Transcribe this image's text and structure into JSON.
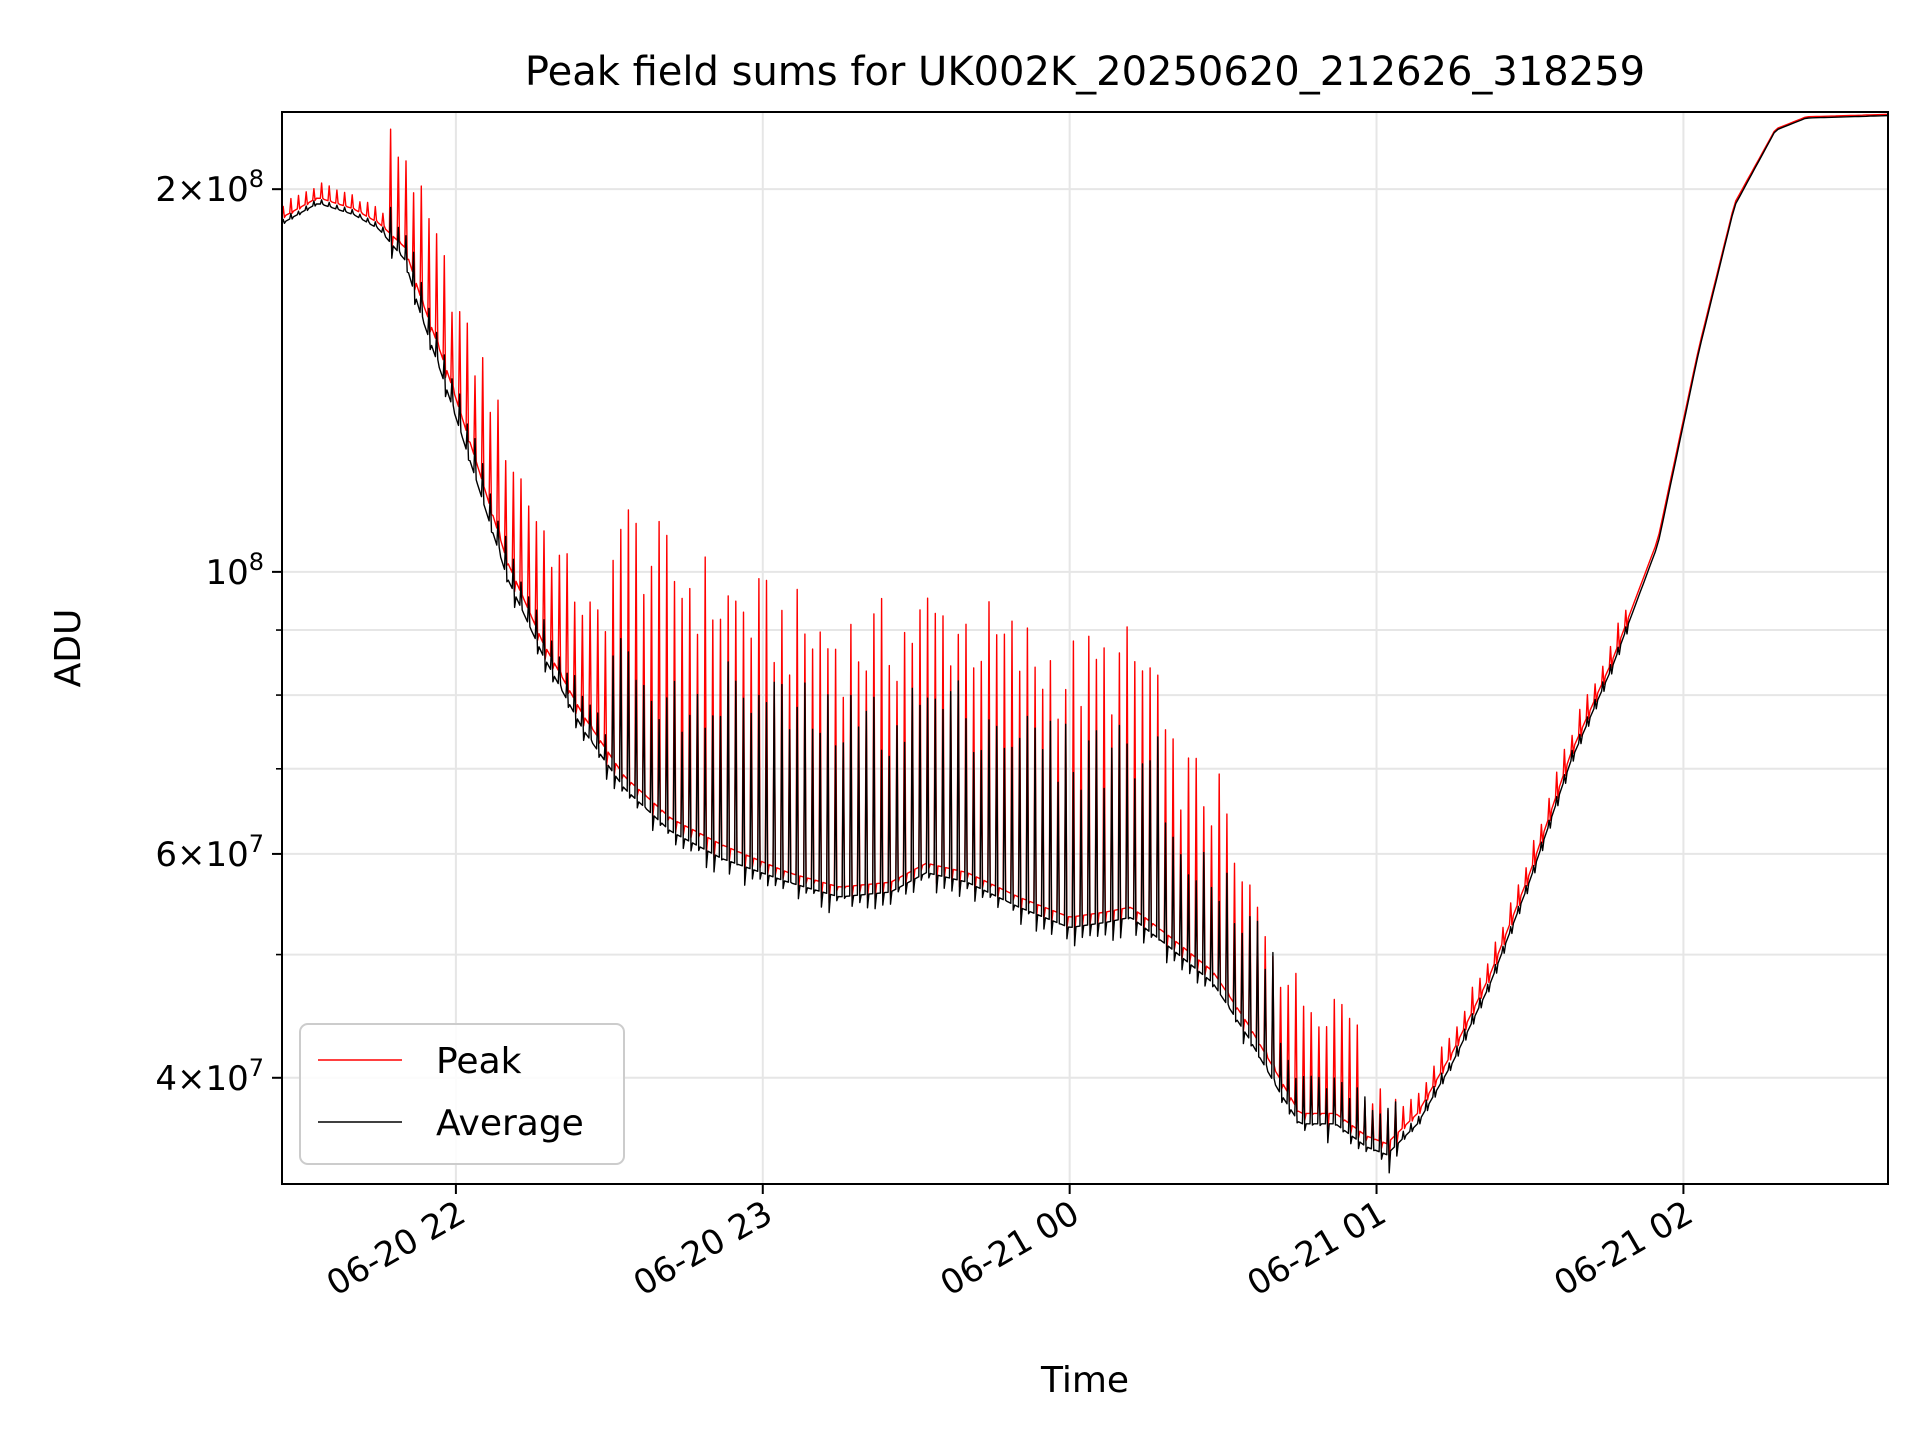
{
  "chart_data": {
    "type": "line",
    "title": "Peak field sums for UK002K_20250620_212626_318259",
    "xlabel": "Time",
    "ylabel": "ADU",
    "yscale": "log",
    "ylim": [
      33000000,
      230000000
    ],
    "xlim": [
      "2025-06-20T21:26:00",
      "2025-06-21T02:40:00"
    ],
    "grid": true,
    "legend_position": "lower-left",
    "x_ticks": [
      {
        "value": "2025-06-20T22:00:00",
        "label": "06-20 22"
      },
      {
        "value": "2025-06-20T23:00:00",
        "label": "06-20 23"
      },
      {
        "value": "2025-06-21T00:00:00",
        "label": "06-21 00"
      },
      {
        "value": "2025-06-21T01:00:00",
        "label": "06-21 01"
      },
      {
        "value": "2025-06-21T02:00:00",
        "label": "06-21 02"
      }
    ],
    "y_major_ticks": [
      {
        "value": 40000000,
        "mant": "4",
        "exp": "7"
      },
      {
        "value": 60000000,
        "mant": "6",
        "exp": "7"
      },
      {
        "value": 100000000,
        "mant": "",
        "exp": "8"
      },
      {
        "value": 200000000,
        "mant": "2",
        "exp": "8"
      }
    ],
    "y_minor_ticks": [
      50000000,
      70000000,
      80000000,
      90000000
    ],
    "series": [
      {
        "name": "Peak",
        "color": "#ff0000",
        "baseline": [
          [
            "2025-06-20T21:26:00",
            190000000
          ],
          [
            "2025-06-20T21:33:00",
            197000000
          ],
          [
            "2025-06-20T21:40:00",
            193000000
          ],
          [
            "2025-06-20T21:45:00",
            188000000
          ],
          [
            "2025-06-20T21:50:00",
            180000000
          ],
          [
            "2025-06-20T21:53:00",
            165000000
          ],
          [
            "2025-06-20T21:58:00",
            145000000
          ],
          [
            "2025-06-20T22:04:00",
            122000000
          ],
          [
            "2025-06-20T22:10:00",
            102000000
          ],
          [
            "2025-06-20T22:17:00",
            88000000
          ],
          [
            "2025-06-20T22:25:00",
            77000000
          ],
          [
            "2025-06-20T22:33:00",
            69000000
          ],
          [
            "2025-06-20T22:42:00",
            64000000
          ],
          [
            "2025-06-20T22:52:00",
            61000000
          ],
          [
            "2025-06-20T23:05:00",
            58000000
          ],
          [
            "2025-06-20T23:15:00",
            56500000
          ],
          [
            "2025-06-20T23:25:00",
            57000000
          ],
          [
            "2025-06-20T23:32:00",
            59000000
          ],
          [
            "2025-06-20T23:40:00",
            58000000
          ],
          [
            "2025-06-20T23:50:00",
            55500000
          ],
          [
            "2025-06-21T00:00:00",
            53500000
          ],
          [
            "2025-06-21T00:07:00",
            54000000
          ],
          [
            "2025-06-21T00:12:00",
            54500000
          ],
          [
            "2025-06-21T00:20:00",
            51500000
          ],
          [
            "2025-06-21T00:28:00",
            48500000
          ],
          [
            "2025-06-21T00:35:00",
            44000000
          ],
          [
            "2025-06-21T00:41:00",
            40000000
          ],
          [
            "2025-06-21T00:45:00",
            37500000
          ],
          [
            "2025-06-21T00:52:00",
            37500000
          ],
          [
            "2025-06-21T00:58:00",
            36000000
          ],
          [
            "2025-06-21T01:02:00",
            35500000
          ],
          [
            "2025-06-21T01:08:00",
            37500000
          ],
          [
            "2025-06-21T01:15:00",
            42000000
          ],
          [
            "2025-06-21T01:22:00",
            48000000
          ],
          [
            "2025-06-21T01:30:00",
            58000000
          ],
          [
            "2025-06-21T01:38:00",
            72000000
          ],
          [
            "2025-06-21T01:46:00",
            85000000
          ],
          [
            "2025-06-21T01:55:00",
            106000000
          ],
          [
            "2025-06-21T02:03:00",
            150000000
          ],
          [
            "2025-06-21T02:10:00",
            195000000
          ],
          [
            "2025-06-21T02:18:00",
            223000000
          ],
          [
            "2025-06-21T02:24:00",
            228000000
          ],
          [
            "2025-06-21T02:40:00",
            229000000
          ]
        ],
        "spikes": [
          {
            "start": "2025-06-20T21:26:00",
            "end": "2025-06-20T21:47:00",
            "top_ratio": 1.03
          },
          {
            "start": "2025-06-20T21:47:00",
            "end": "2025-06-20T22:05:00",
            "top_ratio": 1.22
          },
          {
            "start": "2025-06-20T22:05:00",
            "end": "2025-06-20T22:30:00",
            "top_ratio": 1.27
          },
          {
            "start": "2025-06-20T22:30:00",
            "end": "2025-06-21T00:18:00",
            "top_ratio": 1.68
          },
          {
            "start": "2025-06-21T00:18:00",
            "end": "2025-06-21T00:32:00",
            "top_ratio": 1.45
          },
          {
            "start": "2025-06-21T00:32:00",
            "end": "2025-06-21T00:40:00",
            "top_ratio": 1.32
          },
          {
            "start": "2025-06-21T00:40:00",
            "end": "2025-06-21T00:57:00",
            "top_ratio": 1.28
          },
          {
            "start": "2025-06-21T00:57:00",
            "end": "2025-06-21T01:05:00",
            "top_ratio": 1.1
          },
          {
            "start": "2025-06-21T01:05:00",
            "end": "2025-06-21T01:50:00",
            "top_ratio": 1.05
          }
        ]
      },
      {
        "name": "Average",
        "color": "#000000",
        "baseline": [
          [
            "2025-06-20T21:26:00",
            188000000
          ],
          [
            "2025-06-20T21:33:00",
            195000000
          ],
          [
            "2025-06-20T21:40:00",
            191000000
          ],
          [
            "2025-06-20T21:45:00",
            186000000
          ],
          [
            "2025-06-20T21:50:00",
            176000000
          ],
          [
            "2025-06-20T21:53:00",
            160000000
          ],
          [
            "2025-06-20T21:58:00",
            140000000
          ],
          [
            "2025-06-20T22:04:00",
            118000000
          ],
          [
            "2025-06-20T22:10:00",
            99000000
          ],
          [
            "2025-06-20T22:17:00",
            86000000
          ],
          [
            "2025-06-20T22:25:00",
            75000000
          ],
          [
            "2025-06-20T22:33:00",
            67500000
          ],
          [
            "2025-06-20T22:42:00",
            62500000
          ],
          [
            "2025-06-20T22:52:00",
            59500000
          ],
          [
            "2025-06-20T23:05:00",
            57000000
          ],
          [
            "2025-06-20T23:15:00",
            55500000
          ],
          [
            "2025-06-20T23:25:00",
            56000000
          ],
          [
            "2025-06-20T23:32:00",
            58000000
          ],
          [
            "2025-06-20T23:40:00",
            57000000
          ],
          [
            "2025-06-20T23:50:00",
            54500000
          ],
          [
            "2025-06-21T00:00:00",
            52500000
          ],
          [
            "2025-06-21T00:07:00",
            53000000
          ],
          [
            "2025-06-21T00:12:00",
            53500000
          ],
          [
            "2025-06-21T00:20:00",
            50500000
          ],
          [
            "2025-06-21T00:28:00",
            47500000
          ],
          [
            "2025-06-21T00:35:00",
            43000000
          ],
          [
            "2025-06-21T00:41:00",
            39000000
          ],
          [
            "2025-06-21T00:45:00",
            36800000
          ],
          [
            "2025-06-21T00:52:00",
            36800000
          ],
          [
            "2025-06-21T00:58:00",
            35300000
          ],
          [
            "2025-06-21T01:02:00",
            34800000
          ],
          [
            "2025-06-21T01:08:00",
            36800000
          ],
          [
            "2025-06-21T01:15:00",
            41200000
          ],
          [
            "2025-06-21T01:22:00",
            47200000
          ],
          [
            "2025-06-21T01:30:00",
            57200000
          ],
          [
            "2025-06-21T01:38:00",
            71000000
          ],
          [
            "2025-06-21T01:46:00",
            84000000
          ],
          [
            "2025-06-21T01:55:00",
            105000000
          ],
          [
            "2025-06-21T02:03:00",
            149000000
          ],
          [
            "2025-06-21T02:10:00",
            194000000
          ],
          [
            "2025-06-21T02:18:00",
            222500000
          ],
          [
            "2025-06-21T02:24:00",
            227500000
          ],
          [
            "2025-06-21T02:40:00",
            228500000
          ]
        ],
        "spikes": [
          {
            "start": "2025-06-20T21:26:00",
            "end": "2025-06-20T21:47:00",
            "top_ratio": 1.01
          },
          {
            "start": "2025-06-20T21:47:00",
            "end": "2025-06-20T22:30:00",
            "top_ratio": 1.07
          },
          {
            "start": "2025-06-20T22:30:00",
            "end": "2025-06-20T22:50:00",
            "top_ratio": 1.32
          },
          {
            "start": "2025-06-20T22:50:00",
            "end": "2025-06-21T00:18:00",
            "top_ratio": 1.45
          },
          {
            "start": "2025-06-21T00:18:00",
            "end": "2025-06-21T00:40:00",
            "top_ratio": 1.28
          },
          {
            "start": "2025-06-21T00:40:00",
            "end": "2025-06-21T01:05:00",
            "top_ratio": 1.1
          },
          {
            "start": "2025-06-21T01:05:00",
            "end": "2025-06-21T01:50:00",
            "top_ratio": 1.02
          }
        ]
      }
    ]
  }
}
